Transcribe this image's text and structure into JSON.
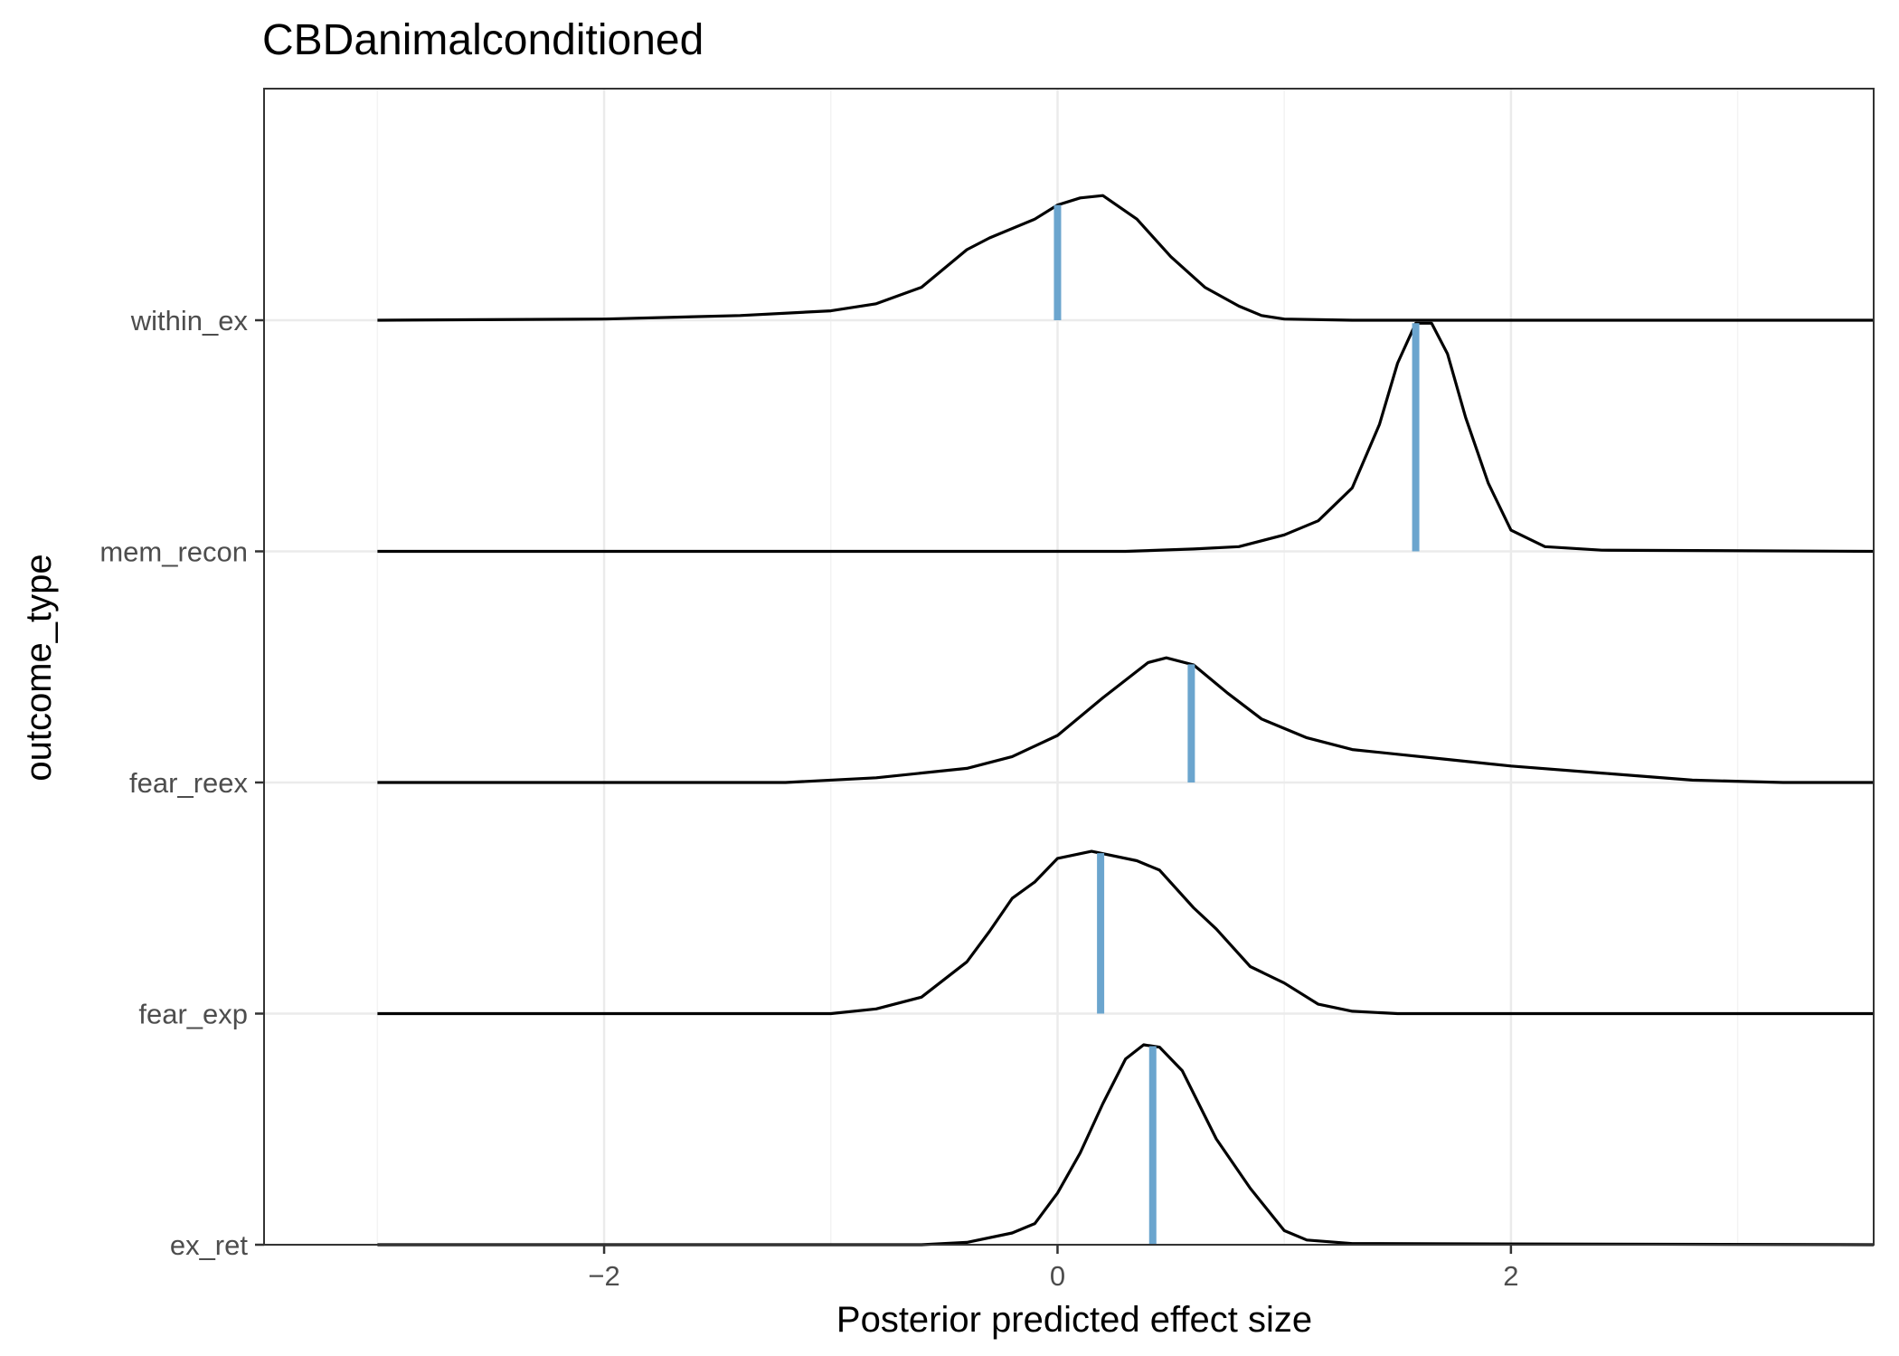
{
  "chart_data": {
    "type": "density_ridgeline",
    "title": "CBDanimalconditioned",
    "xlabel": "Posterior predicted effect size",
    "ylabel": "outcome_type",
    "xlim": [
      -3.5,
      3.6
    ],
    "x_ticks": [
      -2,
      0,
      2
    ],
    "grid": true,
    "colors": {
      "density_line": "#000000",
      "median_line": "#6BA5CE",
      "grid_major": "#EBEBEB",
      "grid_minor": "#F3F3F3",
      "panel_border": "#333333"
    },
    "series": [
      {
        "name": "ex_ret",
        "median": 0.42,
        "density": [
          [
            -3.0,
            0
          ],
          [
            -0.6,
            0
          ],
          [
            -0.4,
            0.01
          ],
          [
            -0.2,
            0.05
          ],
          [
            -0.1,
            0.09
          ],
          [
            0.0,
            0.22
          ],
          [
            0.1,
            0.39
          ],
          [
            0.2,
            0.6
          ],
          [
            0.3,
            0.79
          ],
          [
            0.38,
            0.85
          ],
          [
            0.45,
            0.84
          ],
          [
            0.55,
            0.74
          ],
          [
            0.7,
            0.45
          ],
          [
            0.85,
            0.24
          ],
          [
            1.0,
            0.06
          ],
          [
            1.1,
            0.02
          ],
          [
            1.3,
            0.005
          ],
          [
            3.6,
            0
          ]
        ]
      },
      {
        "name": "fear_exp",
        "median": 0.19,
        "density": [
          [
            -3.0,
            0
          ],
          [
            -1.0,
            0
          ],
          [
            -0.8,
            0.02
          ],
          [
            -0.6,
            0.07
          ],
          [
            -0.4,
            0.22
          ],
          [
            -0.3,
            0.35
          ],
          [
            -0.2,
            0.49
          ],
          [
            -0.1,
            0.56
          ],
          [
            0.0,
            0.66
          ],
          [
            0.15,
            0.69
          ],
          [
            0.35,
            0.65
          ],
          [
            0.45,
            0.61
          ],
          [
            0.6,
            0.45
          ],
          [
            0.7,
            0.36
          ],
          [
            0.85,
            0.2
          ],
          [
            1.0,
            0.13
          ],
          [
            1.15,
            0.04
          ],
          [
            1.3,
            0.01
          ],
          [
            1.5,
            0
          ],
          [
            3.6,
            0
          ]
        ]
      },
      {
        "name": "fear_reex",
        "median": 0.59,
        "density": [
          [
            -3.0,
            0
          ],
          [
            -1.2,
            0
          ],
          [
            -0.8,
            0.02
          ],
          [
            -0.4,
            0.06
          ],
          [
            -0.2,
            0.11
          ],
          [
            0.0,
            0.2
          ],
          [
            0.2,
            0.36
          ],
          [
            0.4,
            0.51
          ],
          [
            0.48,
            0.53
          ],
          [
            0.6,
            0.5
          ],
          [
            0.75,
            0.38
          ],
          [
            0.9,
            0.27
          ],
          [
            1.1,
            0.19
          ],
          [
            1.3,
            0.14
          ],
          [
            1.5,
            0.12
          ],
          [
            1.7,
            0.1
          ],
          [
            2.0,
            0.07
          ],
          [
            2.4,
            0.04
          ],
          [
            2.8,
            0.01
          ],
          [
            3.2,
            0
          ],
          [
            3.6,
            0
          ]
        ]
      },
      {
        "name": "mem_recon",
        "median": 1.58,
        "density": [
          [
            -3.0,
            0
          ],
          [
            0.3,
            0
          ],
          [
            0.6,
            0.01
          ],
          [
            0.8,
            0.02
          ],
          [
            1.0,
            0.07
          ],
          [
            1.15,
            0.13
          ],
          [
            1.3,
            0.27
          ],
          [
            1.42,
            0.54
          ],
          [
            1.5,
            0.8
          ],
          [
            1.58,
            0.97
          ],
          [
            1.65,
            0.97
          ],
          [
            1.72,
            0.84
          ],
          [
            1.8,
            0.57
          ],
          [
            1.9,
            0.29
          ],
          [
            2.0,
            0.09
          ],
          [
            2.15,
            0.02
          ],
          [
            2.4,
            0.005
          ],
          [
            3.6,
            0
          ]
        ]
      },
      {
        "name": "within_ex",
        "median": 0.0,
        "density": [
          [
            -3.0,
            0
          ],
          [
            -2.0,
            0.005
          ],
          [
            -1.4,
            0.02
          ],
          [
            -1.0,
            0.04
          ],
          [
            -0.8,
            0.07
          ],
          [
            -0.6,
            0.14
          ],
          [
            -0.4,
            0.3
          ],
          [
            -0.3,
            0.35
          ],
          [
            -0.1,
            0.43
          ],
          [
            0.0,
            0.49
          ],
          [
            0.1,
            0.52
          ],
          [
            0.2,
            0.53
          ],
          [
            0.35,
            0.43
          ],
          [
            0.5,
            0.27
          ],
          [
            0.65,
            0.14
          ],
          [
            0.8,
            0.06
          ],
          [
            0.9,
            0.02
          ],
          [
            1.0,
            0.005
          ],
          [
            1.3,
            0
          ],
          [
            3.6,
            0
          ]
        ]
      }
    ]
  }
}
